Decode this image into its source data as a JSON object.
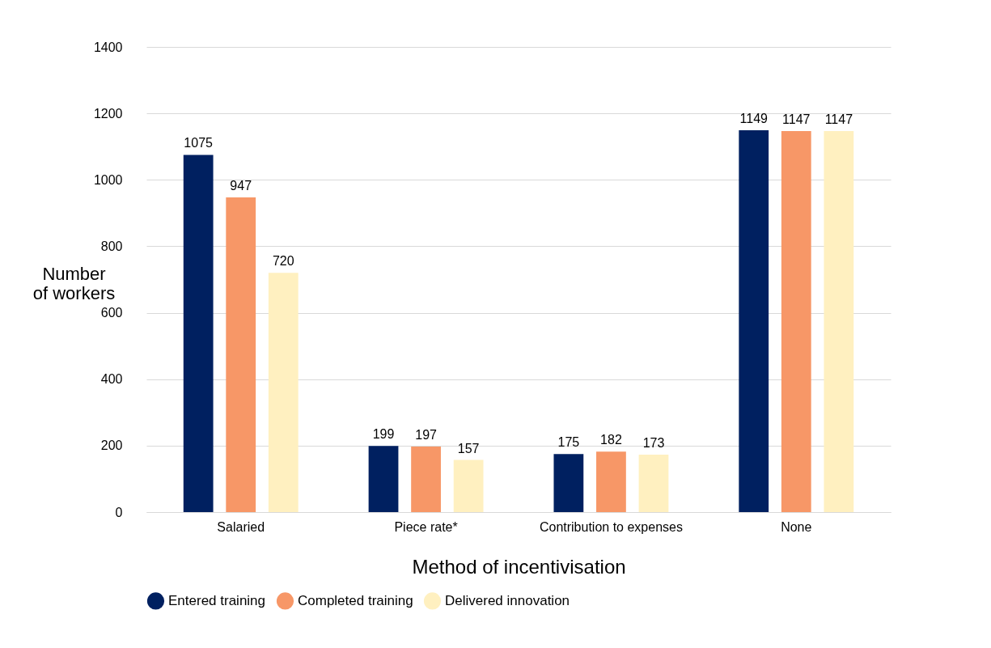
{
  "chart_data": {
    "type": "bar",
    "xlabel": "Method of  incentivisation",
    "ylabel": "Number of workers",
    "categories": [
      "Salaried",
      "Piece rate*",
      "Contribution to expenses",
      "None"
    ],
    "series": [
      {
        "name": "Entered training",
        "color": "#002060",
        "values": [
          1075,
          199,
          175,
          1149
        ]
      },
      {
        "name": "Completed training",
        "color": "#f79767",
        "values": [
          947,
          197,
          182,
          1147
        ]
      },
      {
        "name": "Delivered innovation",
        "color": "#fff0c0",
        "values": [
          720,
          157,
          173,
          1147
        ]
      }
    ],
    "ylim": [
      0,
      1400
    ],
    "yticks": [
      0,
      200,
      400,
      600,
      800,
      1000,
      1200,
      1400
    ],
    "grid": "y",
    "legend": "bottom",
    "data_labels": true
  }
}
